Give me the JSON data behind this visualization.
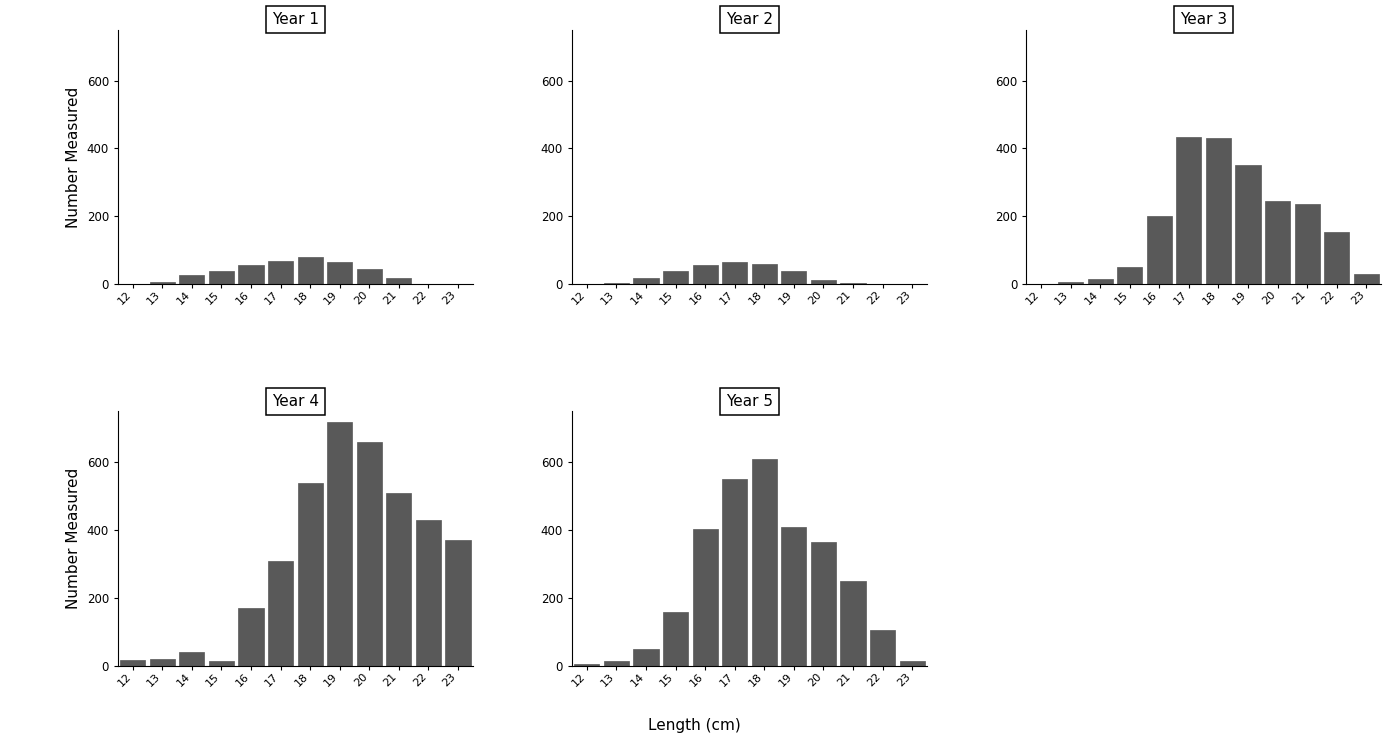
{
  "all_lengths": [
    12,
    13,
    14,
    15,
    16,
    17,
    18,
    19,
    20,
    21,
    22,
    23
  ],
  "year1": {
    "title": "Year 1",
    "lengths": [
      13,
      14,
      15,
      16,
      17,
      18,
      19,
      20,
      21
    ],
    "vals": [
      5,
      28,
      38,
      55,
      68,
      80,
      65,
      45,
      18
    ]
  },
  "year2": {
    "title": "Year 2",
    "lengths": [
      13,
      14,
      15,
      16,
      17,
      18,
      19,
      20,
      21
    ],
    "vals": [
      3,
      18,
      40,
      55,
      65,
      58,
      38,
      12,
      4
    ]
  },
  "year3": {
    "title": "Year 3",
    "lengths": [
      13,
      14,
      15,
      16,
      17,
      18,
      19,
      20,
      21,
      22,
      23
    ],
    "vals": [
      5,
      15,
      50,
      200,
      435,
      430,
      350,
      245,
      235,
      155,
      30
    ]
  },
  "year4": {
    "title": "Year 4",
    "lengths": [
      12,
      13,
      14,
      15,
      16,
      17,
      18,
      19,
      20,
      21,
      22,
      23
    ],
    "vals": [
      18,
      22,
      40,
      15,
      170,
      310,
      540,
      720,
      660,
      510,
      430,
      370
    ]
  },
  "year5": {
    "title": "Year 5",
    "lengths": [
      12,
      13,
      14,
      15,
      16,
      17,
      18,
      19,
      20,
      21,
      22,
      23
    ],
    "vals": [
      5,
      15,
      50,
      160,
      405,
      550,
      610,
      410,
      365,
      250,
      105,
      15
    ]
  },
  "bar_color": "#595959",
  "background_color": "#ffffff",
  "ylabel": "Number Measured",
  "xlabel": "Length (cm)",
  "ylim": [
    0,
    750
  ],
  "yticks": [
    0,
    200,
    400,
    600
  ],
  "title_fontsize": 11,
  "tick_fontsize": 8,
  "label_fontsize": 11
}
